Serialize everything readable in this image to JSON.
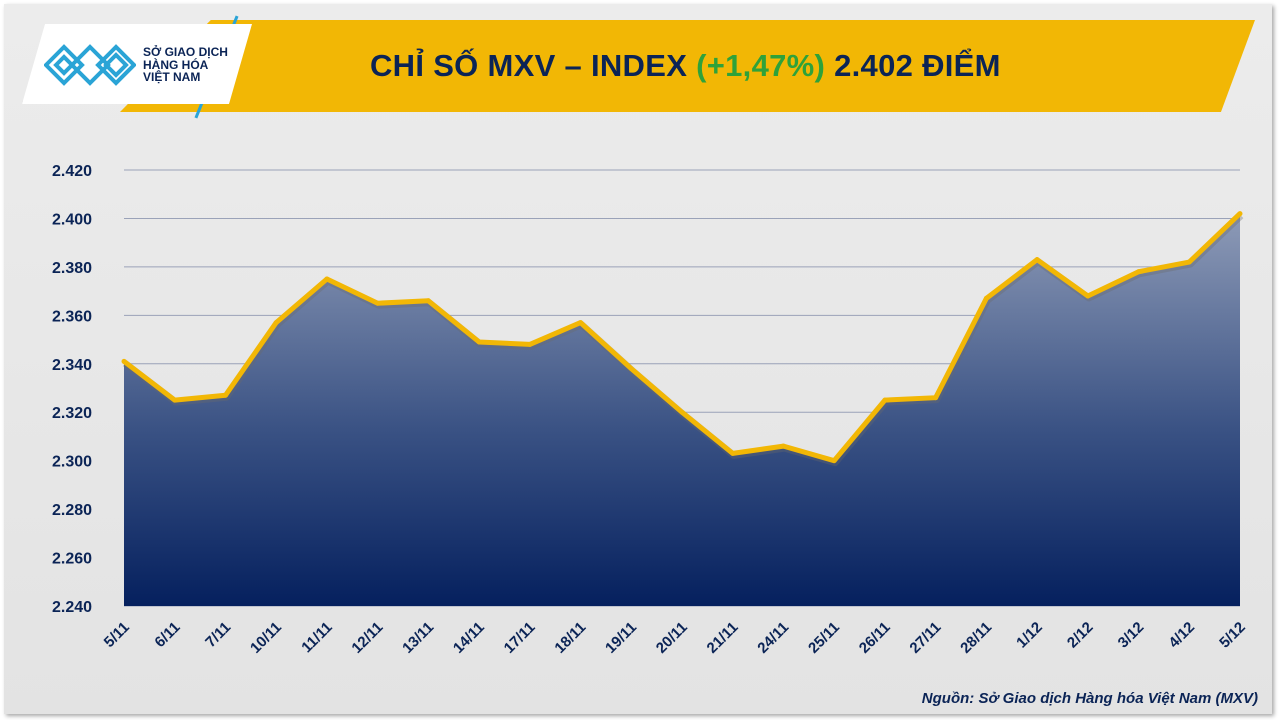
{
  "header": {
    "logo_text": [
      "SỞ GIAO DỊCH",
      "HÀNG HÓA",
      "VIỆT NAM"
    ],
    "title_prefix": "CHỈ SỐ MXV – INDEX ",
    "title_change": "(+1,47%)",
    "title_suffix": " 2.402 ĐIỂM",
    "colors": {
      "banner": "#f2b705",
      "title": "#0b2456",
      "change": "#2fa23a"
    }
  },
  "source": "Nguồn: Sở Giao dịch Hàng hóa Việt Nam (MXV)",
  "chart_data": {
    "type": "area",
    "categories": [
      "5/11",
      "6/11",
      "7/11",
      "10/11",
      "11/11",
      "12/11",
      "13/11",
      "14/11",
      "17/11",
      "18/11",
      "19/11",
      "20/11",
      "21/11",
      "24/11",
      "25/11",
      "26/11",
      "27/11",
      "28/11",
      "1/12",
      "2/12",
      "3/12",
      "4/12",
      "5/12"
    ],
    "values": [
      2341,
      2325,
      2327,
      2357,
      2375,
      2365,
      2366,
      2349,
      2348,
      2357,
      2338,
      2320,
      2303,
      2306,
      2300,
      2325,
      2326,
      2367,
      2383,
      2368,
      2378,
      2382,
      2402
    ],
    "ylim": [
      2240,
      2420
    ],
    "yticks": [
      "2.240",
      "2.260",
      "2.280",
      "2.300",
      "2.320",
      "2.340",
      "2.360",
      "2.380",
      "2.400",
      "2.420"
    ],
    "ytick_values": [
      2240,
      2260,
      2280,
      2300,
      2320,
      2340,
      2360,
      2380,
      2400,
      2420
    ],
    "grid": true,
    "line_color": "#f2b705",
    "fill_top": "#8e9bb7",
    "fill_bottom": "#05205e"
  }
}
